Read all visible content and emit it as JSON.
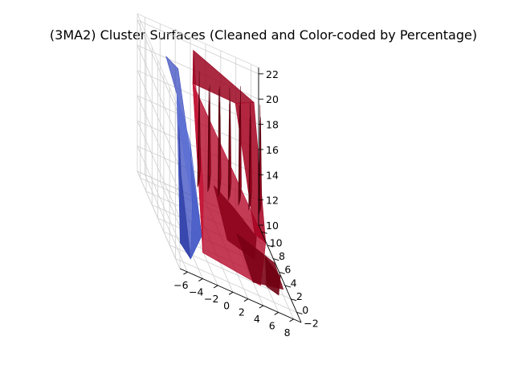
{
  "chart_data": {
    "type": "3d-surface",
    "title": "(3MA2) Cluster Surfaces (Cleaned and Color-coded by Percentage)",
    "x_axis": {
      "label": "",
      "ticks": [
        -6,
        -4,
        -2,
        0,
        2,
        4,
        6,
        8
      ],
      "range": [
        -7,
        9
      ]
    },
    "y_axis": {
      "label": "",
      "ticks": [
        -2,
        0,
        2,
        4,
        6,
        8,
        10
      ],
      "range": [
        -3.5,
        11
      ]
    },
    "z_axis": {
      "label": "",
      "ticks": [
        10,
        12,
        14,
        16,
        18,
        20,
        22
      ],
      "range": [
        10,
        22.5
      ]
    },
    "grid": true,
    "series": [
      {
        "cluster": "blue",
        "color": "#3b4cc0",
        "x_extent": [
          -6,
          -2
        ],
        "y_extent": [
          -2,
          10
        ],
        "z_extent": [
          10,
          21
        ]
      },
      {
        "cluster": "red",
        "color": "#b40426",
        "x_extent": [
          -2,
          8
        ],
        "y_extent": [
          -2,
          10
        ],
        "z_extent": [
          10,
          22
        ]
      }
    ]
  },
  "colors": {
    "blue_surface": "#3b4cc0",
    "red_surface": "#b40426",
    "pane": "#f2f2f2",
    "grid": "#cfcfcf"
  }
}
